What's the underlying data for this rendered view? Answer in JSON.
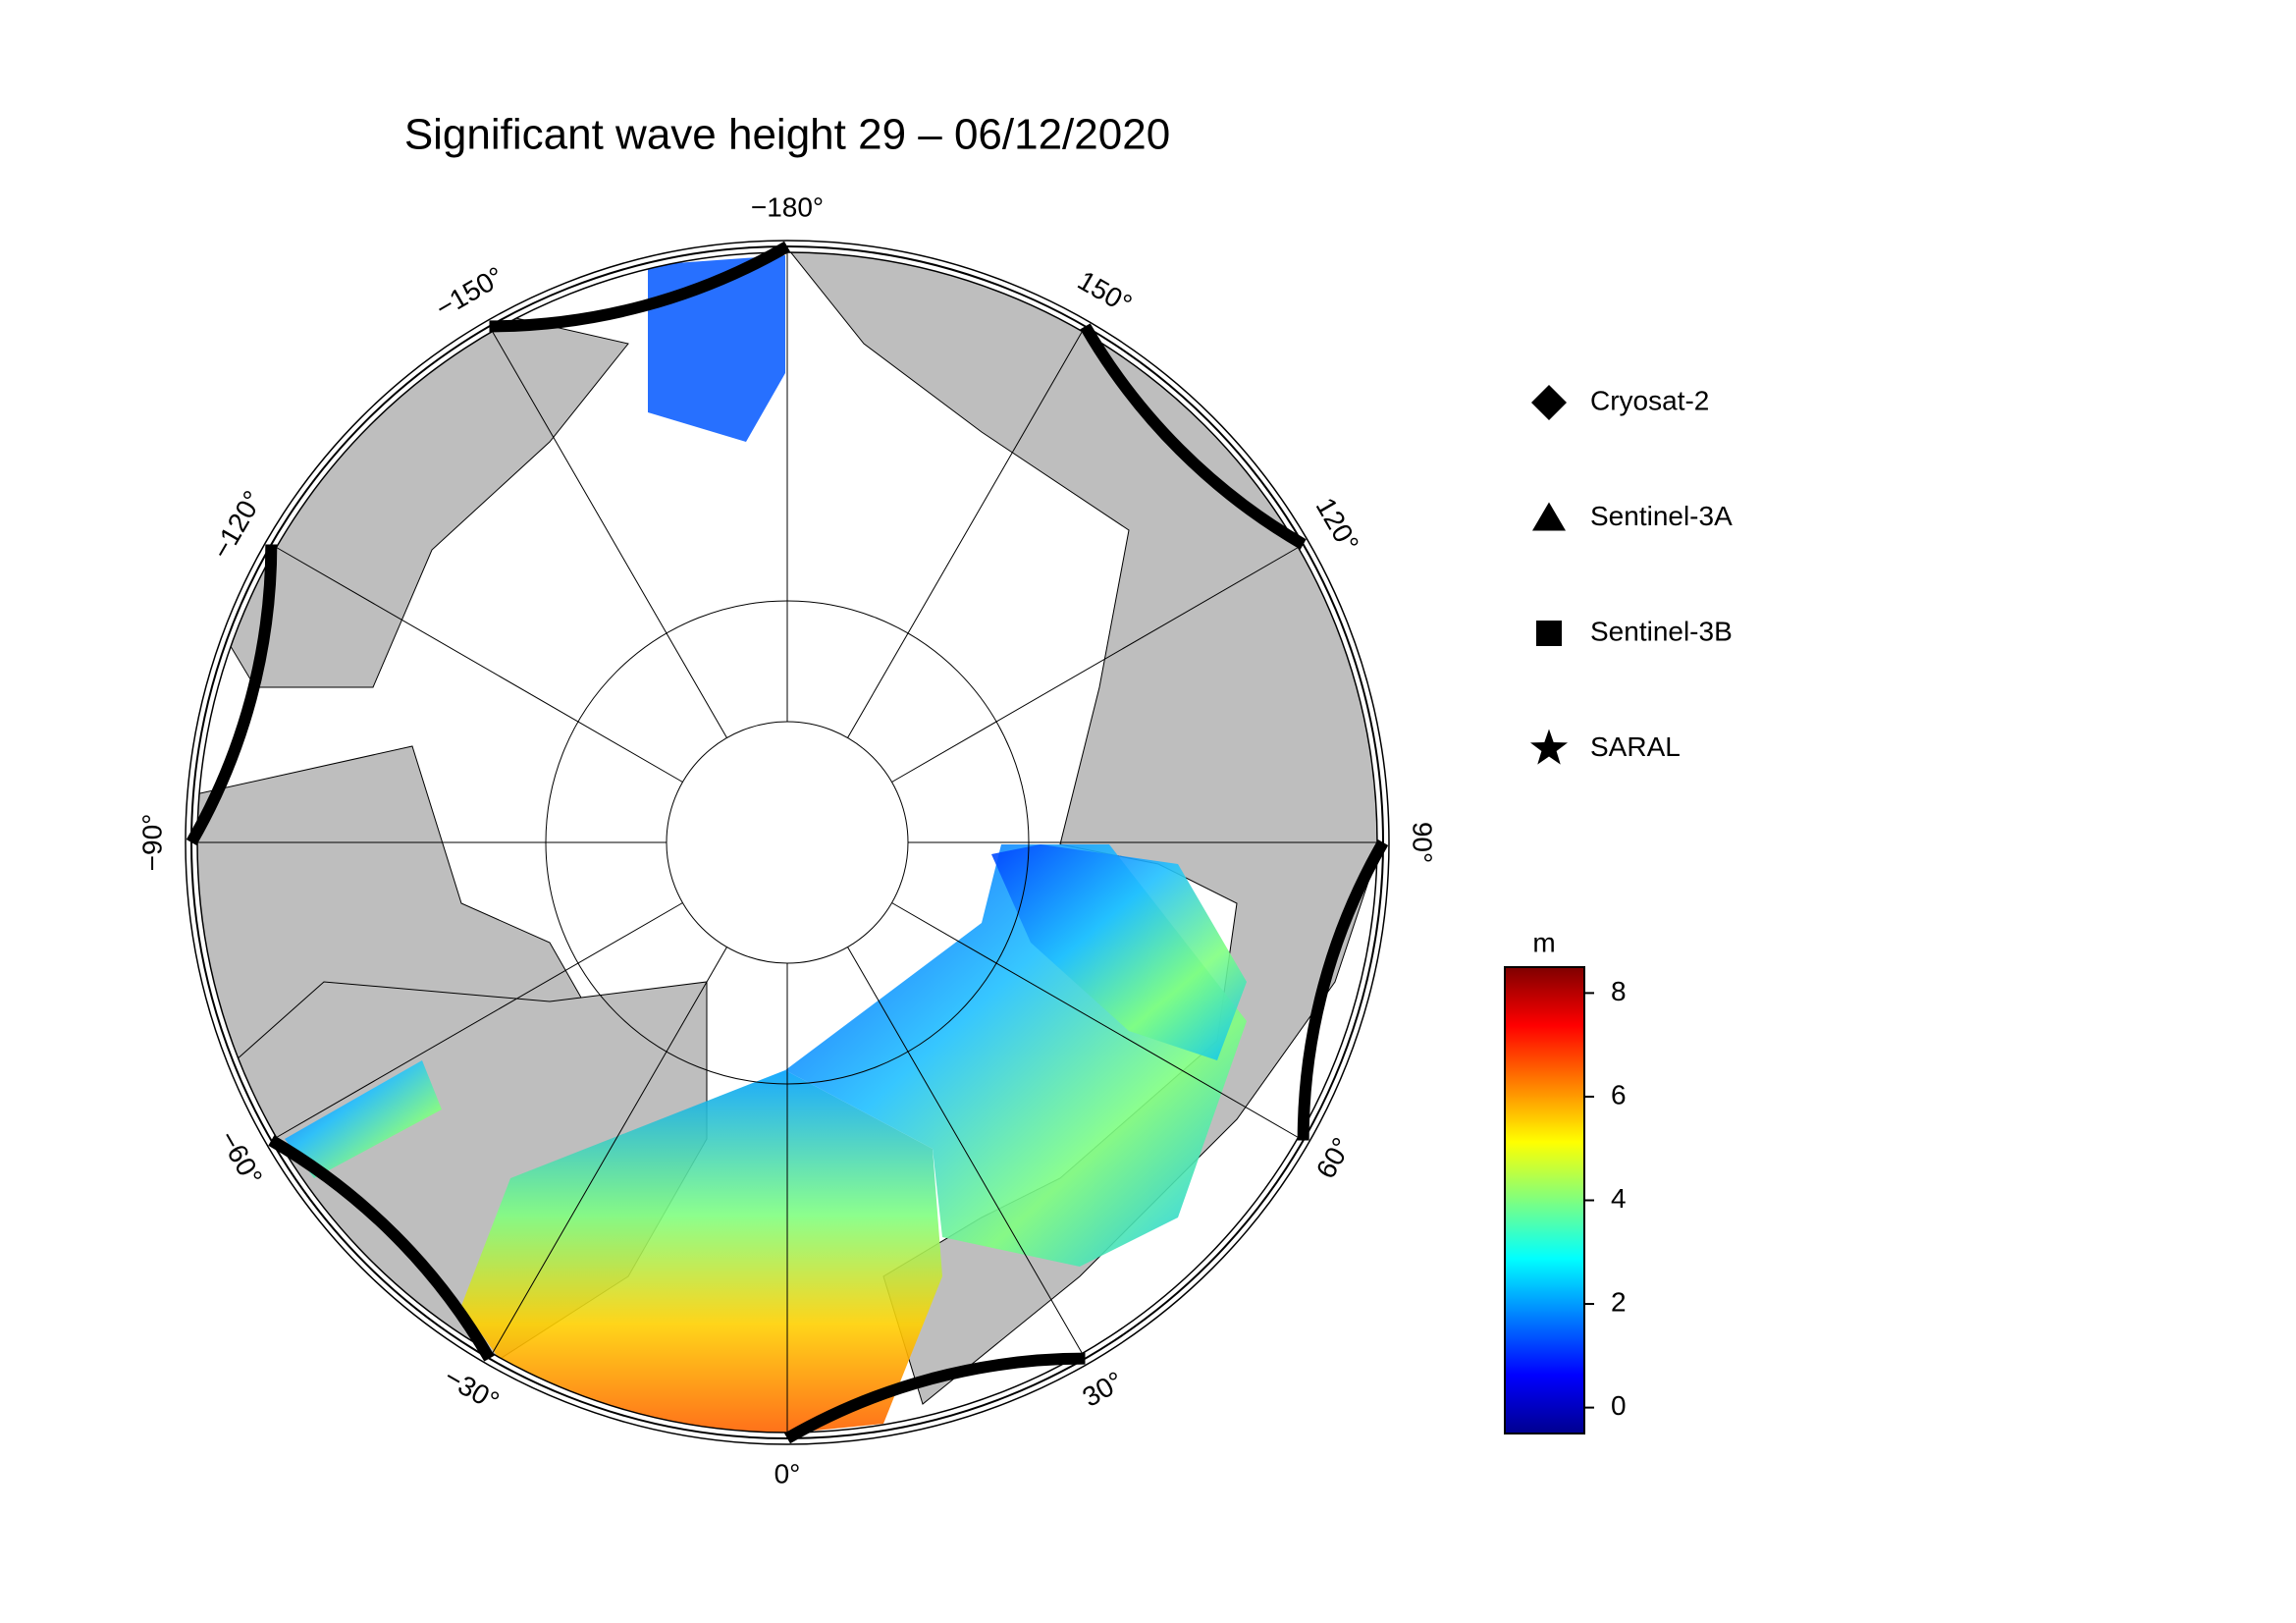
{
  "title": "Significant wave height 29 – 06/12/2020",
  "map": {
    "projection": "north polar stereographic",
    "lon_ticks": [
      {
        "value": -180,
        "label": "−180°"
      },
      {
        "value": 150,
        "label": "150°"
      },
      {
        "value": 120,
        "label": "120°"
      },
      {
        "value": 90,
        "label": "90°"
      },
      {
        "value": 60,
        "label": "60°"
      },
      {
        "value": 30,
        "label": "30°"
      },
      {
        "value": 0,
        "label": "0°"
      },
      {
        "value": -30,
        "label": "−30°"
      },
      {
        "value": -60,
        "label": "−60°"
      },
      {
        "value": -90,
        "label": "−90°"
      },
      {
        "value": -120,
        "label": "−120°"
      },
      {
        "value": -150,
        "label": "−150°"
      }
    ]
  },
  "legend": [
    {
      "name": "Cryosat-2",
      "marker": "diamond"
    },
    {
      "name": "Sentinel-3A",
      "marker": "triangle"
    },
    {
      "name": "Sentinel-3B",
      "marker": "square"
    },
    {
      "name": "SARAL",
      "marker": "star"
    }
  ],
  "colorbar": {
    "unit": "m",
    "lim": [
      -0.5,
      8.5
    ],
    "ticks": [
      0,
      2,
      4,
      6,
      8
    ],
    "colors": [
      "#00008f",
      "#0000ff",
      "#007fff",
      "#00ffff",
      "#7fff7f",
      "#ffff00",
      "#ff7f00",
      "#ff0000",
      "#7f0000"
    ]
  }
}
